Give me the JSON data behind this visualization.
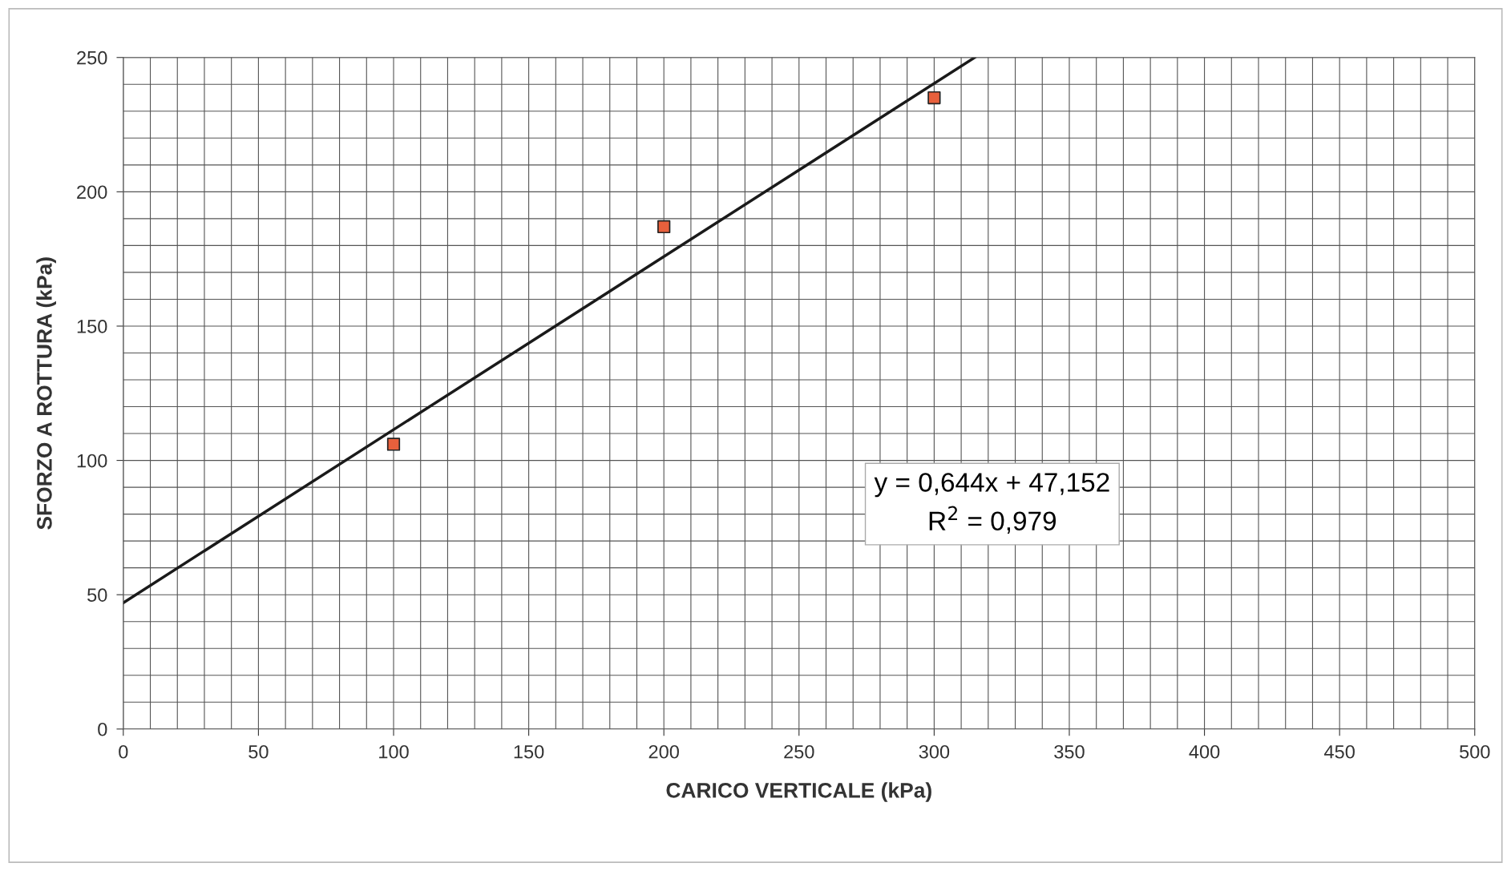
{
  "chart_data": {
    "type": "scatter",
    "xlabel": "CARICO VERTICALE (kPa)",
    "ylabel": "SFORZO A ROTTURA (kPa)",
    "x": [
      100,
      200,
      300
    ],
    "series": [
      {
        "color": "#e8603c",
        "values": [
          106,
          187,
          235
        ],
        "marker": "square"
      },
      {
        "type": "line",
        "color": "#1a1a1a",
        "x": [
          0,
          315
        ],
        "values": [
          47,
          250
        ],
        "line_style": "solid",
        "marker": "none"
      }
    ],
    "annotations": [
      "y = 0,644x + 47,152\nR$^{2}$ = 0,979"
    ],
    "xlim": [
      0,
      500
    ],
    "xticks": [
      0,
      50,
      100,
      150,
      200,
      250,
      300,
      350,
      400,
      450,
      500
    ],
    "ylim": [
      0,
      250
    ],
    "yticks": [
      0,
      50,
      100,
      150,
      200,
      250
    ],
    "grid": true,
    "legend": false
  }
}
